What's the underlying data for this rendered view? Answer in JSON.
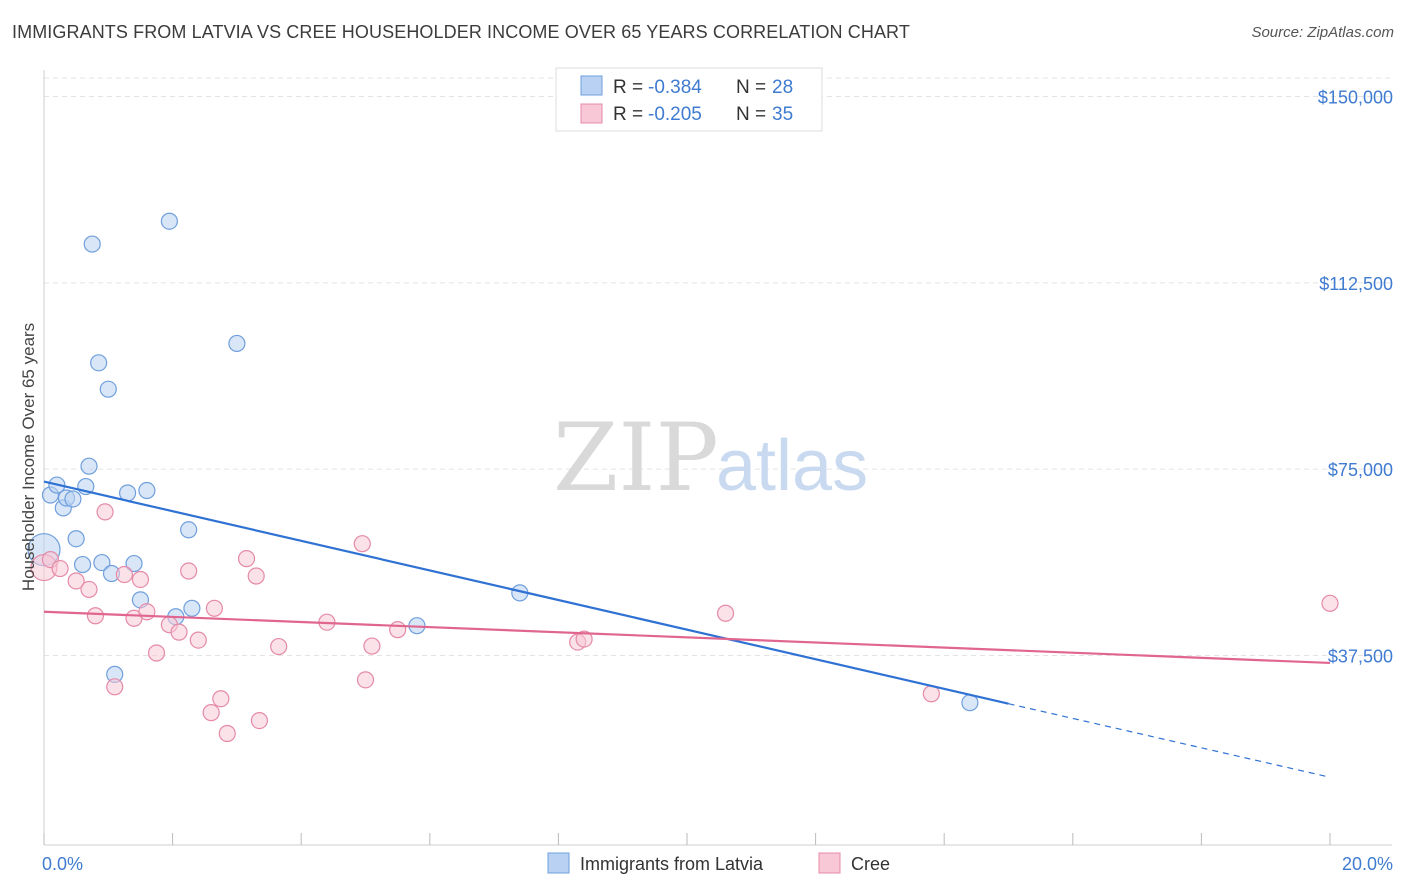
{
  "title": "IMMIGRANTS FROM LATVIA VS CREE HOUSEHOLDER INCOME OVER 65 YEARS CORRELATION CHART",
  "source": "Source: ZipAtlas.com",
  "watermark": {
    "zip": "ZIP",
    "atlas": "atlas"
  },
  "colors": {
    "latvia_fill": "#b9d1f2",
    "latvia_stroke": "#6f9fdc",
    "latvia_line": "#2f72d4",
    "cree_fill": "#f8c8d6",
    "cree_stroke": "#e58aa8",
    "cree_line": "#e0668f",
    "axis_label": "#3f7bd0",
    "grid": "#e3e3e3"
  },
  "legend": {
    "rows": [
      {
        "r_label": "R = ",
        "r_value": "-0.384",
        "n_label": "N = ",
        "n_value": "28"
      },
      {
        "r_label": "R = ",
        "r_value": "-0.205",
        "n_label": "N = ",
        "n_value": "35"
      }
    ]
  },
  "chart_data": {
    "type": "scatter",
    "title": "IMMIGRANTS FROM LATVIA VS CREE HOUSEHOLDER INCOME OVER 65 YEARS CORRELATION CHART",
    "xlabel": "",
    "ylabel": "Householder Income Over 65 years",
    "xlim": [
      0,
      20
    ],
    "ylim": [
      8000,
      155000
    ],
    "x_tick_labels": [
      "0.0%",
      "20.0%"
    ],
    "y_ticks": [
      37500,
      75000,
      112500,
      150000
    ],
    "y_tick_labels": [
      "$37,500",
      "$75,000",
      "$112,500",
      "$150,000"
    ],
    "grid": true,
    "legend_position": "top-center",
    "series": [
      {
        "name": "Immigrants from Latvia",
        "points": [
          [
            0.0,
            58800
          ],
          [
            0.1,
            69800
          ],
          [
            0.2,
            71800
          ],
          [
            0.3,
            67200
          ],
          [
            0.35,
            69200
          ],
          [
            0.45,
            69000
          ],
          [
            0.5,
            61000
          ],
          [
            0.6,
            55800
          ],
          [
            0.65,
            71500
          ],
          [
            0.7,
            75600
          ],
          [
            0.75,
            120300
          ],
          [
            0.85,
            96400
          ],
          [
            0.9,
            56200
          ],
          [
            1.0,
            91100
          ],
          [
            1.05,
            54000
          ],
          [
            1.3,
            70200
          ],
          [
            1.4,
            56000
          ],
          [
            1.5,
            48700
          ],
          [
            1.6,
            70700
          ],
          [
            1.95,
            124900
          ],
          [
            2.05,
            45300
          ],
          [
            2.3,
            47000
          ],
          [
            2.25,
            62800
          ],
          [
            3.0,
            100300
          ],
          [
            1.1,
            33700
          ],
          [
            7.4,
            50100
          ],
          [
            5.8,
            43500
          ],
          [
            14.4,
            28000
          ]
        ],
        "trend": {
          "x0": 0.0,
          "y0": 72500,
          "x1": 15.0,
          "y1": 27800,
          "dash_to_x": 20.0,
          "dash_to_y": 13000
        }
      },
      {
        "name": "Cree",
        "points": [
          [
            0.0,
            55200
          ],
          [
            0.1,
            56800
          ],
          [
            0.25,
            55000
          ],
          [
            0.5,
            52500
          ],
          [
            0.7,
            50800
          ],
          [
            0.8,
            45500
          ],
          [
            0.95,
            66400
          ],
          [
            1.1,
            31200
          ],
          [
            1.25,
            53800
          ],
          [
            1.4,
            45000
          ],
          [
            1.5,
            52800
          ],
          [
            1.6,
            46300
          ],
          [
            1.75,
            38000
          ],
          [
            1.95,
            43700
          ],
          [
            2.1,
            42200
          ],
          [
            2.25,
            54500
          ],
          [
            2.4,
            40600
          ],
          [
            2.6,
            26000
          ],
          [
            2.65,
            47000
          ],
          [
            2.75,
            28800
          ],
          [
            2.85,
            21800
          ],
          [
            3.15,
            57000
          ],
          [
            3.3,
            53500
          ],
          [
            3.35,
            24400
          ],
          [
            3.65,
            39300
          ],
          [
            4.4,
            44200
          ],
          [
            4.95,
            60000
          ],
          [
            5.0,
            32600
          ],
          [
            5.1,
            39400
          ],
          [
            5.5,
            42700
          ],
          [
            8.3,
            40200
          ],
          [
            8.4,
            40800
          ],
          [
            10.6,
            46000
          ],
          [
            13.8,
            29800
          ],
          [
            20.0,
            48000
          ]
        ],
        "trend": {
          "x0": 0.0,
          "y0": 46300,
          "x1": 20.0,
          "y1": 36000
        }
      }
    ]
  }
}
